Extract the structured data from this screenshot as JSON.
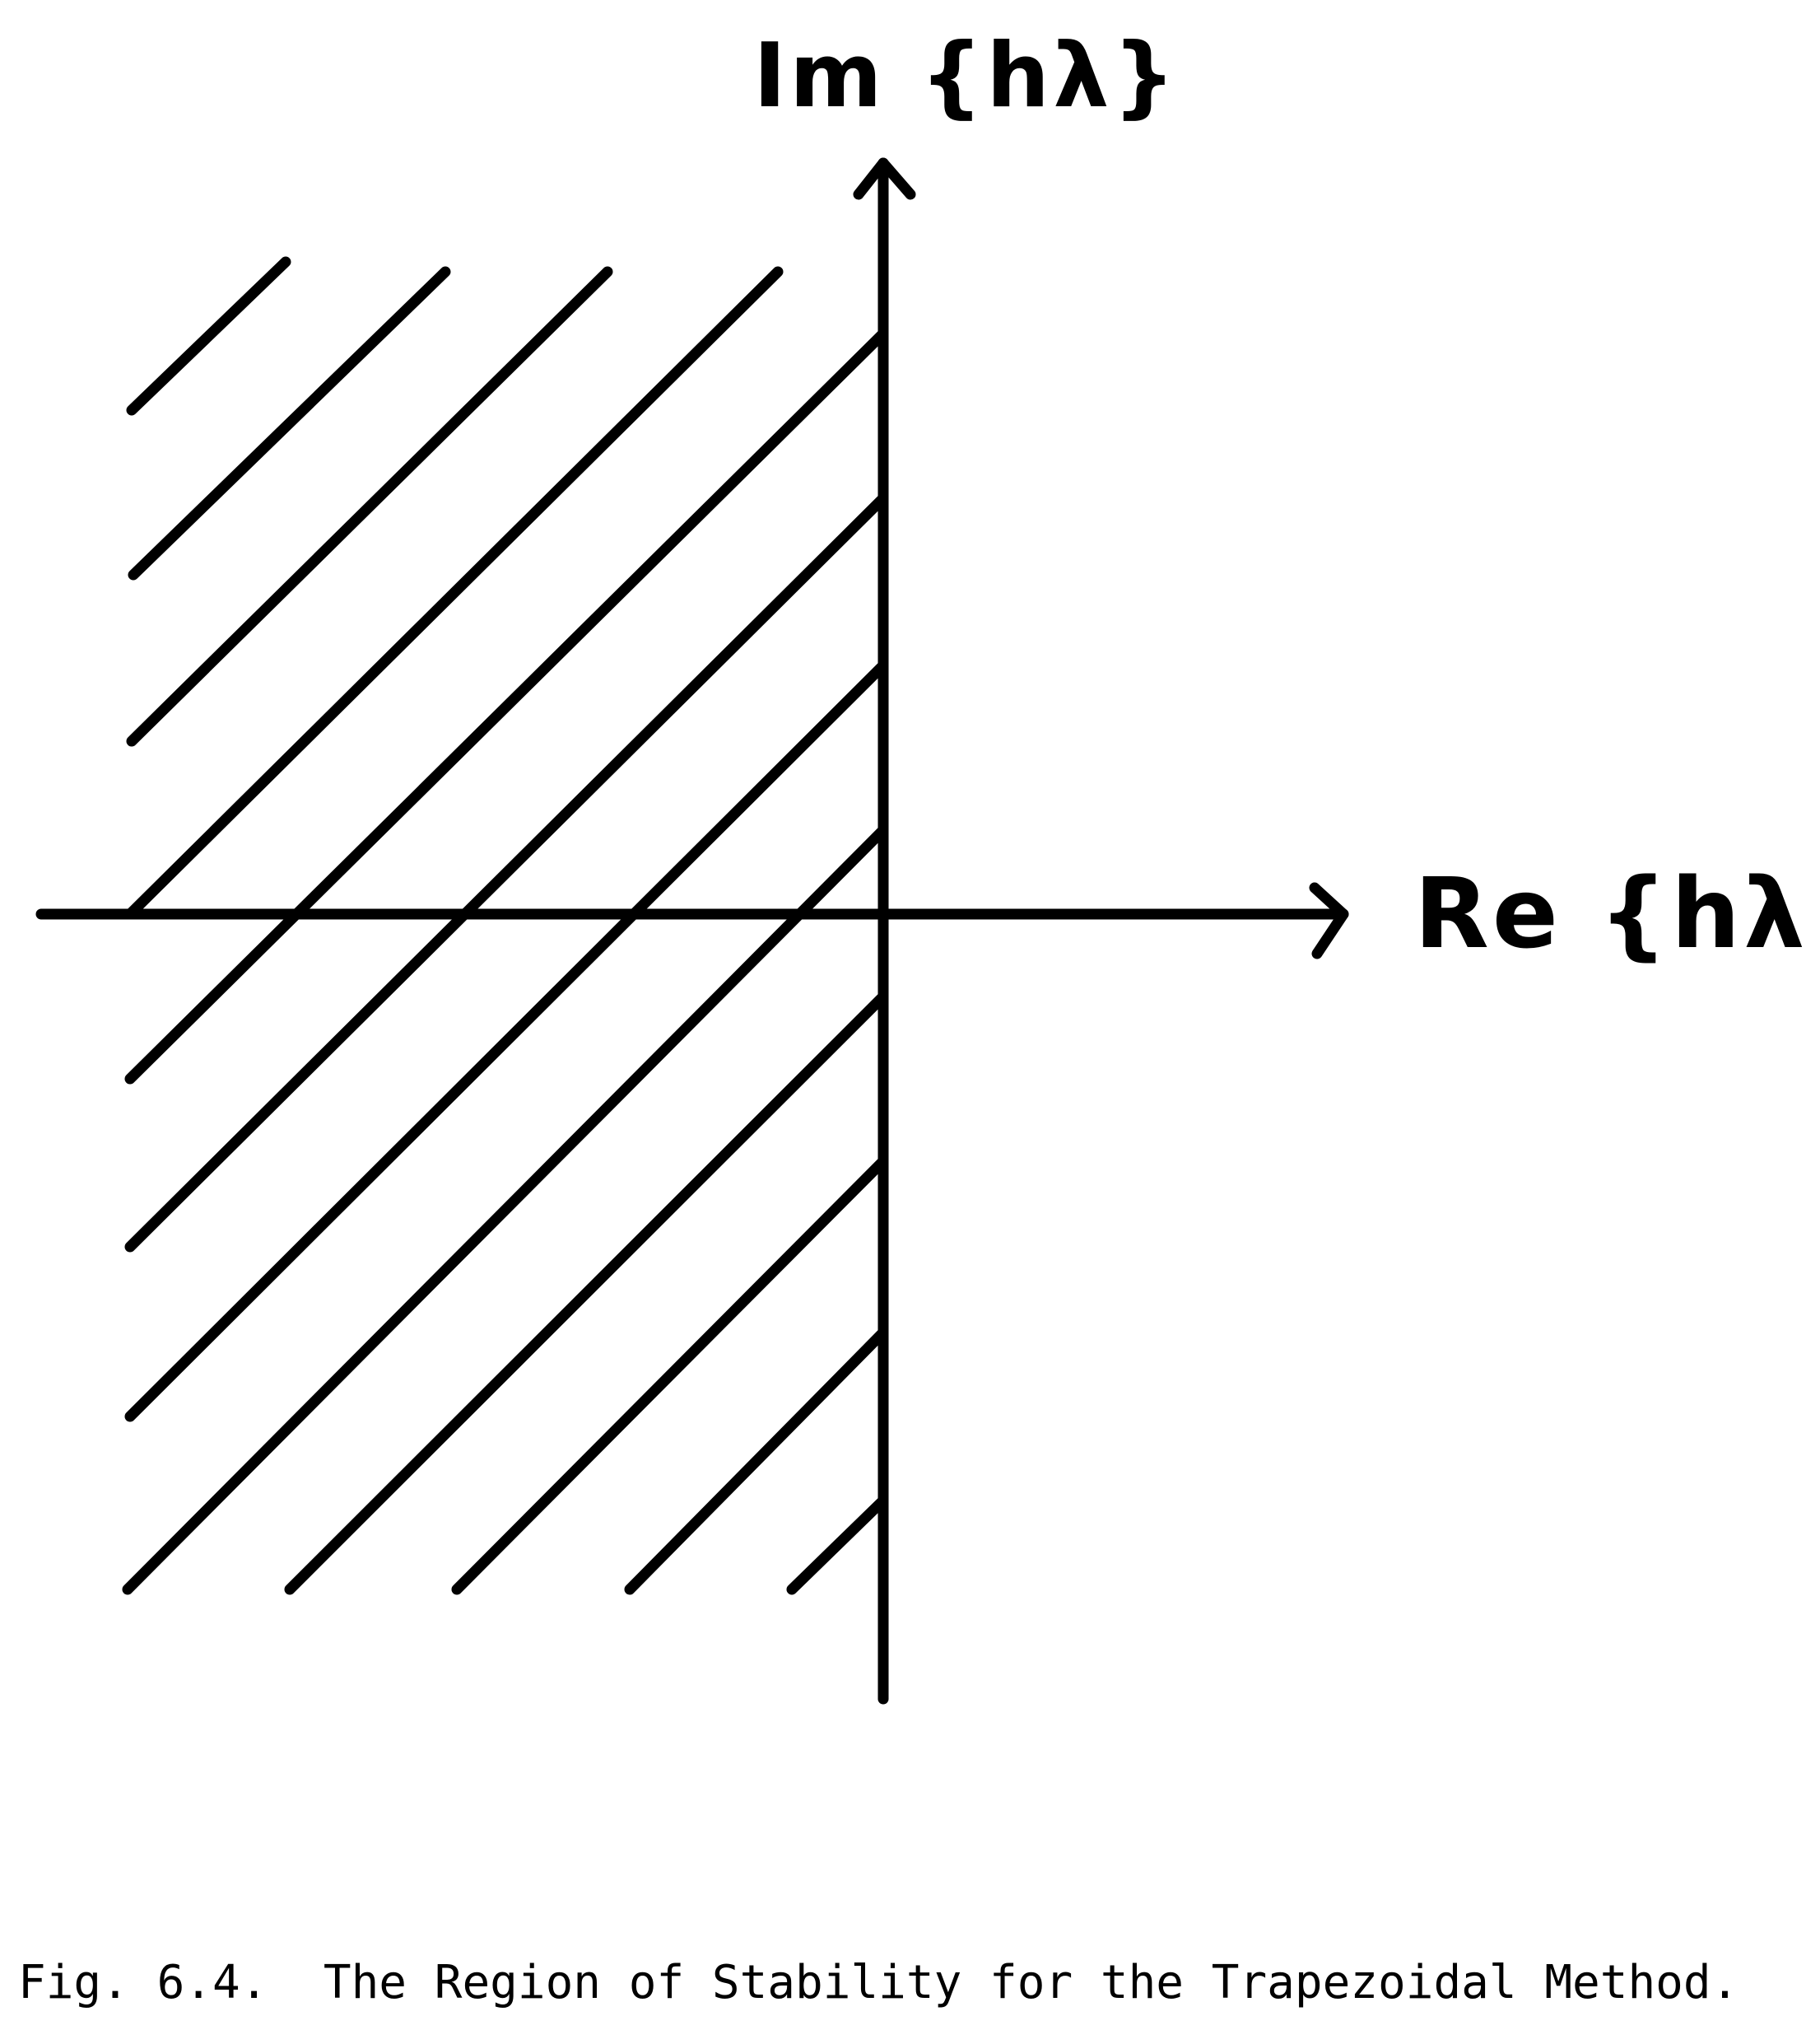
{
  "diagram": {
    "axes": {
      "vertical_label": "Im {hλ}",
      "horizontal_label": "Re {hλ}"
    },
    "hatched_region": "left half-plane Re{hλ} ≤ 0",
    "colors": {
      "ink": "#000000",
      "paper": "#ffffff"
    }
  },
  "caption": "Fig. 6.4.  The Region of Stability for the Trapezoidal Method."
}
